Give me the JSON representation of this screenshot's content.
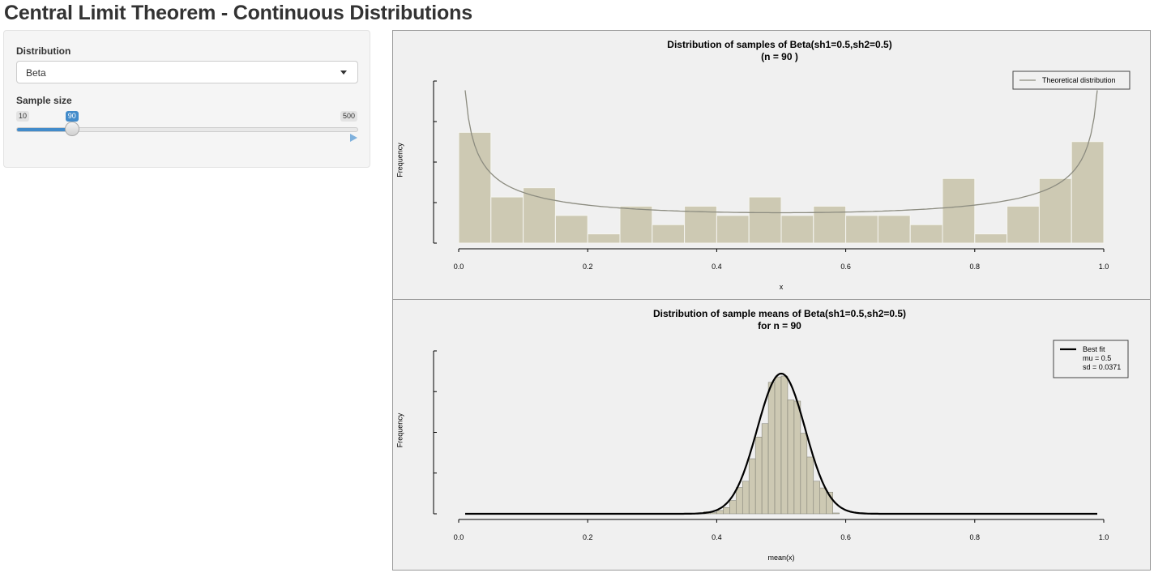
{
  "page": {
    "title": "Central Limit Theorem - Continuous Distributions"
  },
  "sidebar": {
    "distribution": {
      "label": "Distribution",
      "value": "Beta"
    },
    "sample_size": {
      "label": "Sample size",
      "min": "10",
      "max": "500",
      "value": "90",
      "fraction": 0.163
    }
  },
  "colors": {
    "bar_fill": "#cdc9b3",
    "accent": "#428bca",
    "curve1": "#8c8c80",
    "curve2": "#000000"
  },
  "chart_data": [
    {
      "type": "bar",
      "title": "Distribution of samples of Beta(sh1=0.5,sh2=0.5)",
      "subtitle": "(n = 90 )",
      "xlabel": "x",
      "ylabel": "Frequency",
      "xlim": [
        0,
        1
      ],
      "ylim": [
        0,
        18
      ],
      "x_ticks": [
        "0.0",
        "0.2",
        "0.4",
        "0.6",
        "0.8",
        "1.0"
      ],
      "y_ticks_labeled": false,
      "bin_edges": [
        0,
        0.05,
        0.1,
        0.15,
        0.2,
        0.25,
        0.3,
        0.35,
        0.4,
        0.45,
        0.5,
        0.55,
        0.6,
        0.65,
        0.7,
        0.75,
        0.8,
        0.85,
        0.9,
        0.95,
        1.0
      ],
      "values": [
        12,
        5,
        6,
        3,
        1,
        4,
        2,
        4,
        3,
        5,
        3,
        4,
        3,
        3,
        2,
        7,
        1,
        4,
        7,
        11
      ],
      "curve": {
        "name": "Theoretical distribution",
        "type": "beta-density",
        "shape1": 0.5,
        "shape2": 0.5
      },
      "legend": {
        "position": "top-right",
        "entries": [
          "Theoretical distribution"
        ]
      },
      "grid": false
    },
    {
      "type": "bar",
      "title": "Distribution of sample means of Beta(sh1=0.5,sh2=0.5)",
      "subtitle": "for n = 90",
      "xlabel": "mean(x)",
      "ylabel": "Frequency",
      "xlim": [
        0,
        1
      ],
      "ylim": [
        0,
        40
      ],
      "x_ticks": [
        "0.0",
        "0.2",
        "0.4",
        "0.6",
        "0.8",
        "1.0"
      ],
      "y_ticks_labeled": false,
      "bin_edges": [
        0.38,
        0.39,
        0.4,
        0.41,
        0.42,
        0.43,
        0.44,
        0.45,
        0.46,
        0.47,
        0.48,
        0.49,
        0.5,
        0.51,
        0.52,
        0.53,
        0.54,
        0.55,
        0.56,
        0.57,
        0.58,
        0.59
      ],
      "values": [
        0.5,
        0.3,
        0.8,
        1.5,
        3.2,
        6.3,
        7.8,
        13.2,
        18.4,
        21.6,
        31.5,
        32.8,
        33.0,
        27.3,
        27.0,
        19.3,
        13.6,
        7.8,
        6.2,
        5.2,
        0.2
      ],
      "curve": {
        "name": "Best fit",
        "type": "normal-fit",
        "mu": 0.5,
        "sd": 0.0371,
        "range": [
          0.01,
          0.99
        ]
      },
      "legend": {
        "position": "top-right",
        "entries": [
          "Best fit",
          "mu = 0.5",
          "sd = 0.0371"
        ]
      },
      "grid": false
    }
  ]
}
